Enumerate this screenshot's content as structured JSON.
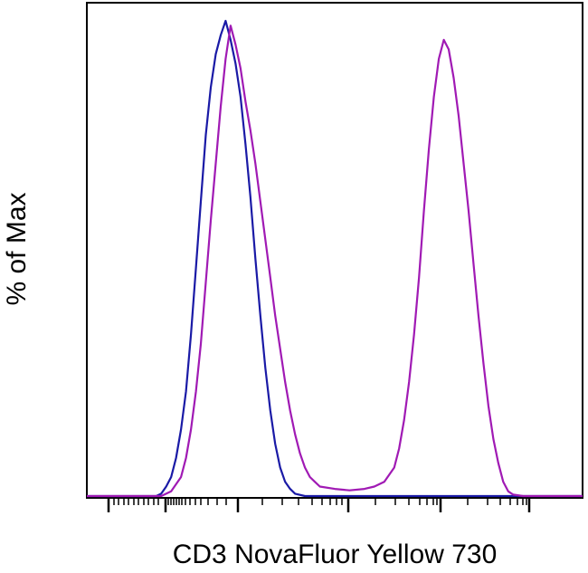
{
  "chart_data": {
    "type": "line",
    "title": "",
    "xlabel": "CD3 NovaFluor Yellow 730",
    "ylabel": "% of Max",
    "x_scale": "biexponential",
    "x_tick_labels_shown": false,
    "y_tick_labels_shown": false,
    "grid": false,
    "legend": "none",
    "xlim": [
      0,
      100
    ],
    "ylim": [
      0,
      100
    ],
    "series": [
      {
        "color": "#1a1aa6",
        "points": [
          [
            0,
            0
          ],
          [
            14,
            0
          ],
          [
            15,
            0.5
          ],
          [
            16,
            2
          ],
          [
            17,
            4
          ],
          [
            18,
            8
          ],
          [
            19,
            14
          ],
          [
            20,
            22
          ],
          [
            21,
            34
          ],
          [
            22,
            48
          ],
          [
            23,
            62
          ],
          [
            24,
            76
          ],
          [
            25,
            86
          ],
          [
            26,
            93
          ],
          [
            27,
            97
          ],
          [
            28,
            100
          ],
          [
            29,
            96
          ],
          [
            30,
            91
          ],
          [
            31,
            84
          ],
          [
            32,
            74
          ],
          [
            33,
            63
          ],
          [
            34,
            50
          ],
          [
            35,
            38
          ],
          [
            36,
            27
          ],
          [
            37,
            18
          ],
          [
            38,
            11
          ],
          [
            39,
            6
          ],
          [
            40,
            3
          ],
          [
            41,
            1.5
          ],
          [
            42,
            0.5
          ],
          [
            44,
            0
          ],
          [
            100,
            0
          ]
        ]
      },
      {
        "color": "#a01ab4",
        "points": [
          [
            0,
            0
          ],
          [
            15,
            0
          ],
          [
            17,
            1
          ],
          [
            19,
            4
          ],
          [
            20,
            8
          ],
          [
            21,
            14
          ],
          [
            22,
            22
          ],
          [
            23,
            32
          ],
          [
            24,
            45
          ],
          [
            25,
            58
          ],
          [
            26,
            70
          ],
          [
            27,
            82
          ],
          [
            28,
            92
          ],
          [
            29,
            99
          ],
          [
            30,
            95
          ],
          [
            31,
            90
          ],
          [
            32,
            83
          ],
          [
            33,
            77
          ],
          [
            34,
            70
          ],
          [
            35,
            62
          ],
          [
            36,
            54
          ],
          [
            37,
            46
          ],
          [
            38,
            38
          ],
          [
            39,
            31
          ],
          [
            40,
            24
          ],
          [
            41,
            18
          ],
          [
            42,
            13
          ],
          [
            43,
            9
          ],
          [
            44,
            6
          ],
          [
            45,
            4
          ],
          [
            46,
            3
          ],
          [
            47,
            2
          ],
          [
            50,
            1.5
          ],
          [
            53,
            1.2
          ],
          [
            56,
            1.5
          ],
          [
            58,
            2
          ],
          [
            60,
            3
          ],
          [
            62,
            6
          ],
          [
            63,
            10
          ],
          [
            64,
            16
          ],
          [
            65,
            24
          ],
          [
            66,
            34
          ],
          [
            67,
            46
          ],
          [
            68,
            60
          ],
          [
            69,
            73
          ],
          [
            70,
            84
          ],
          [
            71,
            92
          ],
          [
            72,
            96
          ],
          [
            73,
            94
          ],
          [
            74,
            88
          ],
          [
            75,
            80
          ],
          [
            76,
            70
          ],
          [
            77,
            60
          ],
          [
            78,
            49
          ],
          [
            79,
            38
          ],
          [
            80,
            28
          ],
          [
            81,
            19
          ],
          [
            82,
            12
          ],
          [
            83,
            7
          ],
          [
            84,
            3
          ],
          [
            85,
            1
          ],
          [
            86,
            0.3
          ],
          [
            88,
            0
          ],
          [
            100,
            0
          ]
        ]
      }
    ]
  }
}
